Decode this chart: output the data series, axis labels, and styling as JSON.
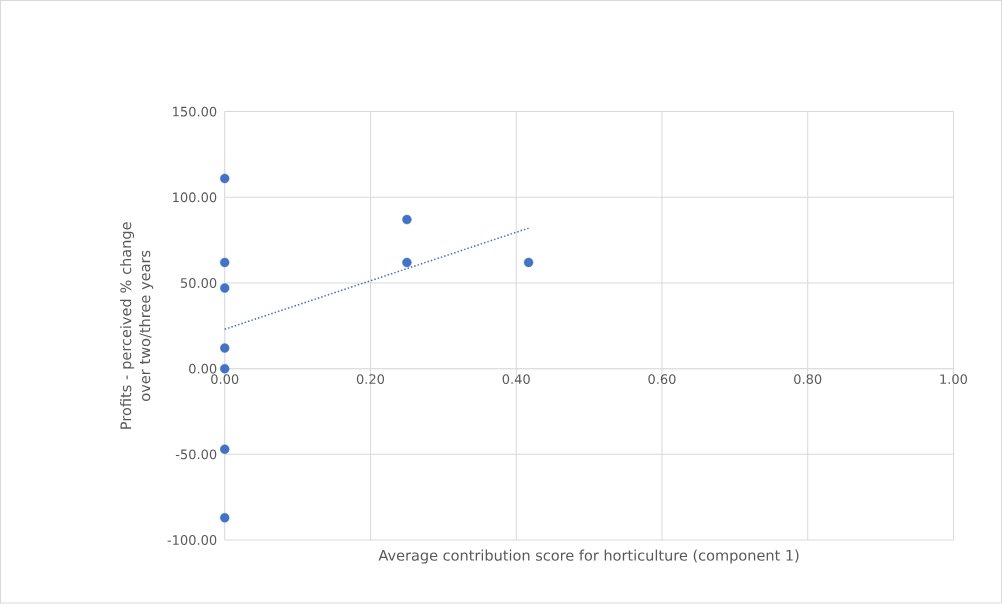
{
  "chart_data": {
    "type": "scatter",
    "xlabel": "Average contribution score for horticulture (component 1)",
    "ylabel": "Profits - perceived % change over two/three years",
    "xlim": [
      0,
      1
    ],
    "ylim": [
      -100,
      150
    ],
    "xticks": [
      {
        "value": 0,
        "label": "0.00"
      },
      {
        "value": 0.2,
        "label": "0.20"
      },
      {
        "value": 0.4,
        "label": "0.40"
      },
      {
        "value": 0.6,
        "label": "0.60"
      },
      {
        "value": 0.8,
        "label": "0.80"
      },
      {
        "value": 1,
        "label": "1.00"
      }
    ],
    "yticks": [
      {
        "value": -100,
        "label": "-100.00"
      },
      {
        "value": -50,
        "label": "-50.00"
      },
      {
        "value": 0,
        "label": "0.00"
      },
      {
        "value": 50,
        "label": "50.00"
      },
      {
        "value": 100,
        "label": "100.00"
      },
      {
        "value": 150,
        "label": "150.00"
      }
    ],
    "grid": true,
    "marker": "circle",
    "series": [
      {
        "color": "#4472c4",
        "x": [
          0,
          0,
          0,
          0,
          0,
          0,
          0,
          0.25,
          0.25,
          0.417
        ],
        "values": [
          111,
          62,
          47,
          12,
          0,
          -47,
          -87,
          87,
          62,
          62
        ]
      },
      {
        "type": "line",
        "color": "#4472c4",
        "line_style": "dotted",
        "marker": "none",
        "x": [
          0,
          0.417
        ],
        "values": [
          23,
          82
        ]
      }
    ]
  }
}
